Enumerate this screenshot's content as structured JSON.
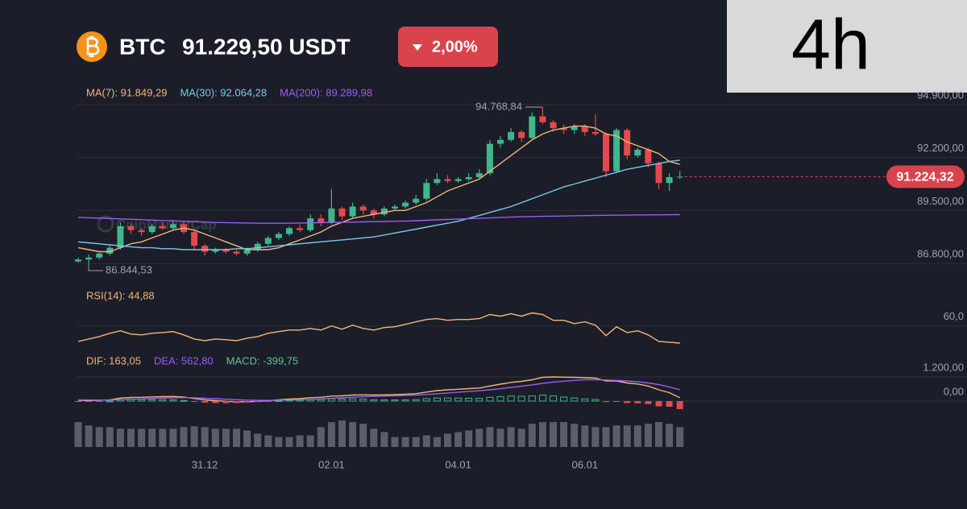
{
  "header": {
    "symbol": "BTC",
    "price": "91.229,50 USDT",
    "change": "2,00%"
  },
  "timeframe": "4h",
  "chart_data": [
    {
      "type": "candlestick",
      "categories": [
        null,
        null,
        null,
        null,
        null,
        null,
        null,
        null,
        null,
        null,
        null,
        null,
        "31.12",
        null,
        null,
        null,
        null,
        null,
        null,
        null,
        null,
        null,
        null,
        null,
        "02.01",
        null,
        null,
        null,
        null,
        null,
        null,
        null,
        null,
        null,
        null,
        null,
        "04.01",
        null,
        null,
        null,
        null,
        null,
        null,
        null,
        null,
        null,
        null,
        null,
        "06.01",
        null,
        null,
        null,
        null,
        null,
        null,
        null,
        null,
        null
      ],
      "open": [
        86900,
        87000,
        87100,
        87300,
        87600,
        88700,
        88500,
        88400,
        88700,
        88600,
        88800,
        88400,
        87700,
        87400,
        87500,
        87400,
        87300,
        87500,
        87800,
        88100,
        88300,
        88600,
        88500,
        89100,
        88900,
        89600,
        89200,
        89700,
        89500,
        89300,
        89600,
        89700,
        89900,
        90100,
        90900,
        91100,
        91000,
        91100,
        91200,
        91400,
        92900,
        93100,
        93500,
        93200,
        94300,
        94000,
        93700,
        93600,
        93800,
        93500,
        93400,
        91500,
        93600,
        92300,
        92600,
        91900,
        90900,
        91200
      ],
      "high": [
        87100,
        87250,
        87400,
        87700,
        88900,
        88800,
        88600,
        88800,
        88900,
        89000,
        88900,
        88500,
        87800,
        87600,
        87600,
        87500,
        87600,
        87900,
        88200,
        88400,
        88700,
        88800,
        89300,
        89300,
        90600,
        89700,
        89900,
        89800,
        89600,
        89700,
        89800,
        90000,
        90300,
        91100,
        91400,
        91300,
        91200,
        91400,
        91600,
        93100,
        93300,
        93700,
        93600,
        94500,
        94768.84,
        94100,
        93900,
        93900,
        93900,
        94400,
        93500,
        93700,
        93700,
        92700,
        92700,
        92000,
        91400,
        91500
      ],
      "low": [
        86850,
        86844.53,
        87000,
        87200,
        87500,
        88300,
        88200,
        88300,
        88500,
        88500,
        88300,
        87500,
        87200,
        87300,
        87300,
        87200,
        87200,
        87400,
        87700,
        88000,
        88200,
        88400,
        88400,
        88700,
        88800,
        89000,
        89100,
        89300,
        89100,
        89200,
        89500,
        89600,
        89800,
        90000,
        90800,
        90900,
        90900,
        91000,
        91100,
        91300,
        92700,
        93000,
        93000,
        93100,
        93900,
        93500,
        93400,
        93400,
        93300,
        93300,
        91200,
        91400,
        92100,
        92200,
        91700,
        90600,
        90500,
        91100
      ],
      "close": [
        87000,
        87100,
        87300,
        87600,
        88700,
        88500,
        88400,
        88700,
        88600,
        88800,
        88400,
        87700,
        87400,
        87500,
        87400,
        87300,
        87500,
        87800,
        88100,
        88300,
        88600,
        88500,
        89100,
        88900,
        89600,
        89200,
        89700,
        89500,
        89300,
        89600,
        89700,
        89900,
        90100,
        90900,
        91100,
        91000,
        91100,
        91200,
        91400,
        92900,
        93100,
        93500,
        93200,
        94300,
        94000,
        93700,
        93600,
        93800,
        93500,
        93400,
        91500,
        93600,
        92300,
        92600,
        91900,
        90900,
        91200,
        91224
      ],
      "up_color": "#3fb68b",
      "down_color": "#e5484d",
      "ylim": [
        86270,
        95920
      ],
      "yticks": [
        {
          "value": 94900,
          "label": "94.900,00"
        },
        {
          "value": 92200,
          "label": "92.200,00"
        },
        {
          "value": 89500,
          "label": "89.500,00"
        },
        {
          "value": 86800,
          "label": "86.800,00"
        }
      ],
      "grid": true,
      "series": [
        {
          "name": "MA(7): 91.849,29",
          "color": "#f3b57a",
          "values": [
            87600,
            87500,
            87400,
            87400,
            87600,
            87800,
            87900,
            88100,
            88300,
            88500,
            88600,
            88500,
            88300,
            88100,
            87900,
            87700,
            87500,
            87500,
            87500,
            87600,
            87800,
            88000,
            88200,
            88400,
            88700,
            88900,
            89100,
            89200,
            89300,
            89400,
            89500,
            89500,
            89700,
            89900,
            90200,
            90500,
            90700,
            90900,
            91100,
            91500,
            91900,
            92300,
            92700,
            93100,
            93400,
            93600,
            93700,
            93800,
            93800,
            93700,
            93400,
            93300,
            93000,
            92800,
            92600,
            92400,
            92000,
            91849.29
          ]
        },
        {
          "name": "MA(30): 92.064,28",
          "color": "#79c8e8",
          "values": [
            87900,
            87850,
            87800,
            87750,
            87700,
            87650,
            87600,
            87600,
            87550,
            87550,
            87500,
            87500,
            87500,
            87500,
            87500,
            87550,
            87550,
            87600,
            87650,
            87700,
            87750,
            87800,
            87850,
            87900,
            87950,
            88000,
            88050,
            88100,
            88150,
            88250,
            88350,
            88450,
            88550,
            88650,
            88750,
            88850,
            88950,
            89100,
            89250,
            89400,
            89550,
            89700,
            89900,
            90100,
            90300,
            90500,
            90700,
            90850,
            91000,
            91150,
            91300,
            91450,
            91600,
            91700,
            91800,
            91900,
            92000,
            92064.28
          ]
        },
        {
          "name": "MA(200): 89.289,98",
          "color": "#9b5cf6",
          "values": [
            89150,
            89130,
            89110,
            89090,
            89070,
            89050,
            89030,
            89010,
            88990,
            88970,
            88950,
            88930,
            88910,
            88890,
            88880,
            88870,
            88860,
            88850,
            88850,
            88850,
            88850,
            88860,
            88870,
            88880,
            88890,
            88900,
            88910,
            88920,
            88930,
            88940,
            88950,
            88960,
            88980,
            89000,
            89020,
            89040,
            89060,
            89080,
            89100,
            89120,
            89140,
            89160,
            89180,
            89190,
            89200,
            89210,
            89220,
            89230,
            89240,
            89250,
            89255,
            89260,
            89265,
            89270,
            89275,
            89280,
            89285,
            89289.98
          ]
        }
      ],
      "high_label": "94.768,84",
      "low_label": "86.844,53",
      "current_price": {
        "value": 91224.32,
        "label": "91.224,32"
      },
      "watermark": "CoinMarketCap"
    },
    {
      "type": "line",
      "ylim": [
        42,
        79
      ],
      "yticks": [
        {
          "value": 60,
          "label": "60,0"
        }
      ],
      "series": [
        {
          "name": "RSI(14): 44,88",
          "color": "#f3b57a",
          "values": [
            46.3,
            48.5,
            50.6,
            53.5,
            55.7,
            52.8,
            52.1,
            53.5,
            54.2,
            55,
            52.1,
            48.5,
            47,
            48.5,
            47.8,
            47,
            49.2,
            50.6,
            53.5,
            55,
            56.4,
            56.4,
            57.8,
            56.4,
            60,
            57.1,
            60.7,
            57.8,
            56.4,
            58.6,
            59.3,
            61.4,
            63.6,
            65.7,
            66.5,
            65,
            65.7,
            65.7,
            66.5,
            70.1,
            68.6,
            70.8,
            68.6,
            71.5,
            70.1,
            65,
            65,
            62.1,
            63.6,
            60.7,
            51.4,
            59.3,
            54.2,
            55.7,
            52.1,
            46.3,
            45.6,
            44.88
          ]
        }
      ]
    },
    {
      "type": "macd",
      "ylim": [
        -440,
        2320
      ],
      "yticks": [
        {
          "value": 1200,
          "label": "1.200,00"
        },
        {
          "value": 0,
          "label": "0,00"
        }
      ],
      "up_color": "#3fb68b",
      "down_color": "#e5484d",
      "series": [
        {
          "name": "DIF: 163,05",
          "color": "#f3b57a",
          "values": [
            40,
            30,
            40,
            60,
            150,
            180,
            190,
            210,
            220,
            230,
            200,
            130,
            60,
            20,
            -10,
            -30,
            -30,
            -10,
            20,
            60,
            100,
            120,
            170,
            190,
            250,
            260,
            300,
            310,
            300,
            310,
            320,
            340,
            370,
            450,
            520,
            560,
            590,
            620,
            650,
            750,
            840,
            930,
            980,
            1060,
            1180,
            1200,
            1190,
            1180,
            1160,
            1140,
            1000,
            1000,
            900,
            850,
            750,
            560,
            420,
            163.05
          ]
        },
        {
          "name": "DEA: 562,80",
          "color": "#9b5cf6",
          "values": [
            60,
            55,
            52,
            53,
            70,
            90,
            110,
            130,
            150,
            165,
            172,
            164,
            143,
            119,
            93,
            68,
            48,
            37,
            33,
            39,
            51,
            65,
            86,
            107,
            136,
            161,
            189,
            213,
            231,
            247,
            262,
            278,
            296,
            327,
            366,
            405,
            442,
            478,
            513,
            561,
            617,
            680,
            740,
            804,
            879,
            943,
            990,
            1028,
            1054,
            1060,
            1050,
            1030,
            1000,
            960,
            900,
            820,
            700,
            562.8
          ]
        },
        {
          "name": "MACD: -399,75",
          "color": "#5ec48a",
          "type": "bar",
          "values": [
            -20,
            -25,
            -12,
            7,
            80,
            90,
            80,
            80,
            70,
            65,
            28,
            -34,
            -83,
            -99,
            -103,
            -98,
            -78,
            -47,
            -13,
            21,
            49,
            55,
            84,
            83,
            114,
            99,
            111,
            97,
            69,
            63,
            58,
            62,
            74,
            123,
            154,
            155,
            148,
            142,
            137,
            189,
            223,
            250,
            240,
            256,
            301,
            257,
            200,
            152,
            106,
            80,
            -50,
            -30,
            -100,
            -110,
            -150,
            -260,
            -280,
            -399.75
          ]
        }
      ]
    },
    {
      "type": "bar",
      "color": "#5a5d6b",
      "ylim": [
        0,
        34
      ],
      "values": [
        30,
        26,
        24,
        24,
        22,
        22,
        22,
        22,
        22,
        22,
        24,
        25,
        24,
        22,
        22,
        22,
        20,
        16,
        14,
        12,
        12,
        14,
        14,
        24,
        30,
        32,
        30,
        28,
        22,
        18,
        12,
        12,
        12,
        14,
        12,
        16,
        18,
        20,
        22,
        24,
        22,
        24,
        22,
        28,
        30,
        30,
        30,
        28,
        26,
        24,
        24,
        26,
        26,
        26,
        28,
        30,
        28,
        24
      ]
    }
  ]
}
